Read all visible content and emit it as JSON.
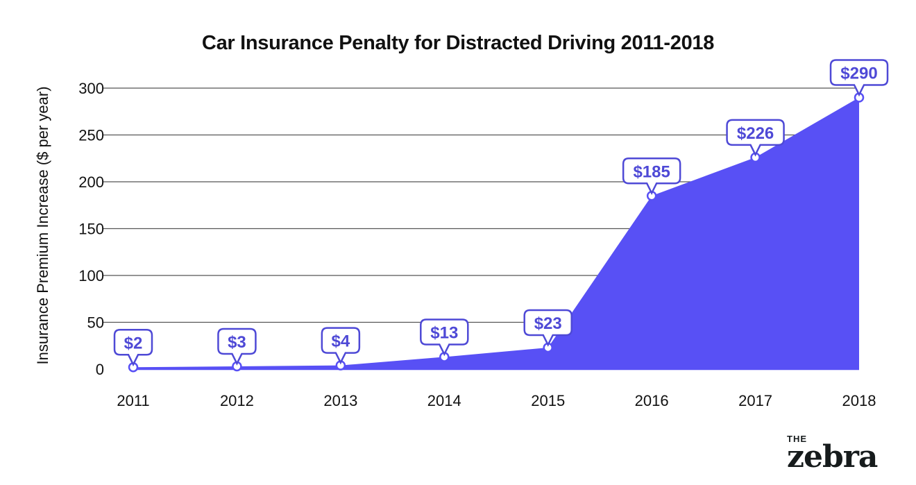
{
  "chart_data": {
    "type": "area",
    "title": "Car Insurance Penalty for Distracted Driving 2011-2018",
    "xlabel": "",
    "ylabel": "Insurance Premium Increase ($ per year)",
    "categories": [
      "2011",
      "2012",
      "2013",
      "2014",
      "2015",
      "2016",
      "2017",
      "2018"
    ],
    "values": [
      2,
      3,
      4,
      13,
      23,
      185,
      226,
      290
    ],
    "data_labels": [
      "$2",
      "$3",
      "$4",
      "$13",
      "$23",
      "$185",
      "$226",
      "$290"
    ],
    "ylim": [
      0,
      300
    ],
    "yticks": [
      0,
      50,
      100,
      150,
      200,
      250,
      300
    ],
    "ytick_labels": [
      "0",
      "50",
      "100",
      "150",
      "200",
      "250",
      "300"
    ],
    "grid": true,
    "legend": "none",
    "fill_color": "#5850f5",
    "label_color": "#4e49d6"
  },
  "branding": {
    "the": "THE",
    "name": "zebra"
  }
}
